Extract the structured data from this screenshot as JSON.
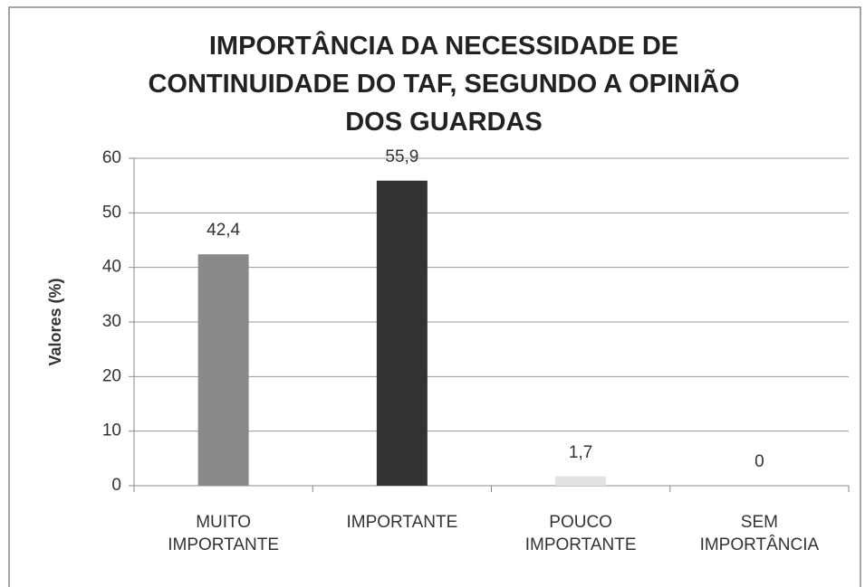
{
  "chart_data": {
    "type": "bar",
    "title": "IMPORTÂNCIA DA NECESSIDADE DE CONTINUIDADE DO TAF, SEGUNDO A OPINIÃO DOS GUARDAS",
    "y_label": "Valores (%)",
    "categories": [
      "MUITO IMPORTANTE",
      "IMPORTANTE",
      "POUCO IMPORTANTE",
      "SEM IMPORTÂNCIA"
    ],
    "values": [
      42.4,
      55.9,
      1.7,
      0
    ],
    "value_labels": [
      "42,4",
      "55,9",
      "1,7",
      "0"
    ],
    "colors": [
      "#8a8a8a",
      "#333333",
      "#e2e2e2",
      "#9a9a9a"
    ],
    "ylim": [
      0,
      60
    ],
    "yticks": [
      0,
      10,
      20,
      30,
      40,
      50,
      60
    ],
    "grid": true
  }
}
